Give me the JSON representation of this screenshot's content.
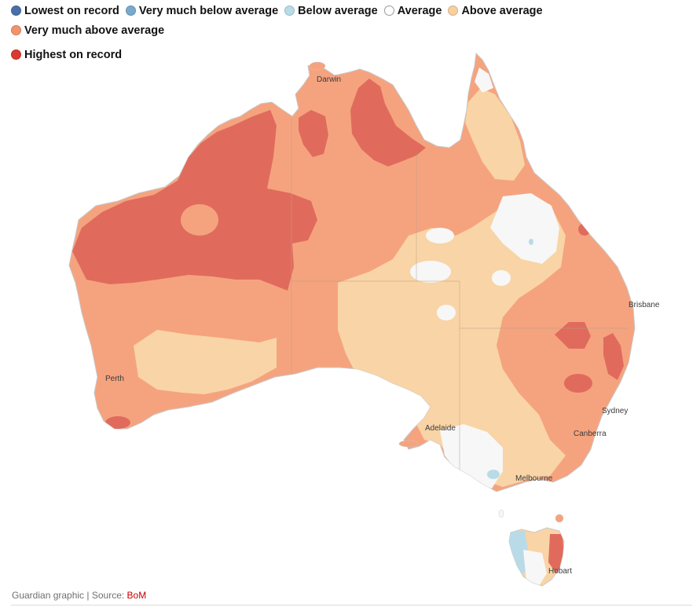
{
  "legend": [
    {
      "label": "Lowest on record",
      "color": "#4a6fa8"
    },
    {
      "label": "Very much below average",
      "color": "#79a9cc"
    },
    {
      "label": "Below average",
      "color": "#b9dbe8"
    },
    {
      "label": "Average",
      "color": "#ffffff"
    },
    {
      "label": "Above average",
      "color": "#f8cf9f"
    },
    {
      "label": "Very much above average",
      "color": "#f2936d"
    },
    {
      "label": "Highest on record",
      "color": "#d9392f"
    }
  ],
  "map": {
    "fills": {
      "average": "#f7f7f7",
      "above": "#f9d4a6",
      "very_above": "#f5a37e",
      "highest": "#e06b5d"
    },
    "cities": [
      "Darwin",
      "Brisbane",
      "Perth",
      "Sydney",
      "Adelaide",
      "Canberra",
      "Melbourne",
      "Hobart"
    ]
  },
  "footer": {
    "credit": "Guardian graphic | Source: ",
    "source_link": "BoM"
  }
}
